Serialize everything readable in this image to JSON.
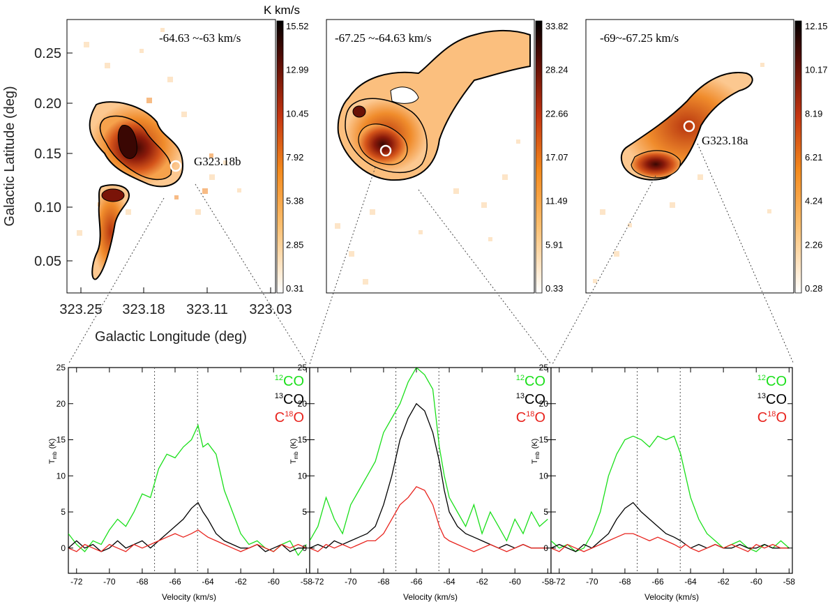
{
  "colors": {
    "green": "#1adf1a",
    "black": "#000000",
    "red": "#e8241e",
    "vline": "#555555"
  },
  "maps": {
    "unit_label": "K km/s",
    "xlabel": "Galactic Longitude (deg)",
    "ylabel": "Galactic Latitude (deg)",
    "x_ticks": [
      "323.25",
      "323.18",
      "323.11",
      "323.03"
    ],
    "y_ticks": [
      "0.25",
      "0.20",
      "0.15",
      "0.10",
      "0.05"
    ],
    "panels": [
      {
        "title": "-64.63 ~-63 km/s",
        "source_label": "G323.18b",
        "colorbar": [
          "15.52",
          "12.99",
          "10.45",
          "7.92",
          "5.38",
          "2.85",
          "0.31"
        ]
      },
      {
        "title": "-67.25 ~-64.63 km/s",
        "source_label": "",
        "colorbar": [
          "33.82",
          "28.24",
          "22.66",
          "17.07",
          "11.49",
          "5.91",
          "0.33"
        ]
      },
      {
        "title": "-69~-67.25 km/s",
        "source_label": "G323.18a",
        "colorbar": [
          "12.15",
          "10.17",
          "8.19",
          "6.21",
          "4.24",
          "2.26",
          "0.28"
        ]
      }
    ]
  },
  "chart_data": {
    "type": "line",
    "xlabel": "Velocity (km/s)",
    "ylabel_main": "T",
    "ylabel_sub": "mb",
    "ylabel_unit": "(K)",
    "xlim": [
      -72.5,
      -57.8
    ],
    "ylim": [
      -3.5,
      25
    ],
    "x_ticks": [
      "-72",
      "-70",
      "-68",
      "-66",
      "-64",
      "-62",
      "-60",
      "-58"
    ],
    "y_ticks": [
      "0",
      "5",
      "10",
      "15",
      "20",
      "25"
    ],
    "legend": {
      "co12": {
        "sup": "12",
        "base": "CO"
      },
      "co13": {
        "sup": "13",
        "base": "CO"
      },
      "c18o": {
        "base": "C",
        "sup": "18",
        "tail": "O"
      }
    },
    "panels": [
      {
        "vlines": [
          -67.25,
          -64.63
        ],
        "series": [
          {
            "name": "12CO",
            "x": [
              -72.5,
              -72,
              -71.5,
              -71,
              -70.5,
              -70,
              -69.5,
              -69,
              -68.5,
              -68,
              -67.5,
              -67,
              -66.5,
              -66,
              -65.5,
              -65,
              -64.6,
              -64.3,
              -64,
              -63.5,
              -63,
              -62.5,
              -62,
              -61.5,
              -61,
              -60.5,
              -60,
              -59.5,
              -59,
              -58.5,
              -58
            ],
            "y": [
              2,
              0.5,
              -0.5,
              1,
              0.5,
              2.5,
              4,
              3,
              5,
              7.5,
              7,
              11,
              13,
              12.5,
              14,
              15,
              17,
              14,
              14.5,
              13,
              8,
              5,
              2,
              0.5,
              1,
              0,
              -0.5,
              0.5,
              1,
              -1,
              0.5
            ]
          },
          {
            "name": "13CO",
            "x": [
              -72.5,
              -72,
              -71.5,
              -71,
              -70.5,
              -70,
              -69.5,
              -69,
              -68.5,
              -68,
              -67.5,
              -67,
              -66.5,
              -66,
              -65.5,
              -65,
              -64.6,
              -64.3,
              -64,
              -63.5,
              -63,
              -62.5,
              -62,
              -61.5,
              -61,
              -60.5,
              -60,
              -59.5,
              -59,
              -58.5,
              -58
            ],
            "y": [
              0,
              1,
              0,
              0.5,
              -0.5,
              0,
              1,
              0,
              0.5,
              1,
              0,
              1,
              2,
              3,
              4,
              5.5,
              6.3,
              5,
              4,
              2,
              1,
              0.5,
              0,
              0,
              0.5,
              -0.5,
              0,
              0.5,
              -0.5,
              0,
              0
            ]
          },
          {
            "name": "C18O",
            "x": [
              -72.5,
              -72,
              -71.5,
              -71,
              -70.5,
              -70,
              -69.5,
              -69,
              -68.5,
              -68,
              -67.5,
              -67,
              -66.5,
              -66,
              -65.5,
              -65,
              -64.6,
              -64.3,
              -64,
              -63.5,
              -63,
              -62.5,
              -62,
              -61.5,
              -61,
              -60.5,
              -60,
              -59.5,
              -59,
              -58.5,
              -58
            ],
            "y": [
              0,
              -0.5,
              0.5,
              0,
              -0.5,
              0.5,
              0,
              -0.5,
              0.5,
              0,
              0.5,
              1,
              1.5,
              2,
              1.5,
              2,
              2.5,
              2,
              1.5,
              1,
              0.5,
              0,
              -0.5,
              0,
              0.5,
              0,
              -0.5,
              0.5,
              0,
              0.5,
              0
            ]
          }
        ]
      },
      {
        "vlines": [
          -67.25,
          -64.63
        ],
        "series": [
          {
            "name": "12CO",
            "x": [
              -72.5,
              -72,
              -71.5,
              -71,
              -70.5,
              -70,
              -69.5,
              -69,
              -68.5,
              -68,
              -67.5,
              -67,
              -66.5,
              -66,
              -65.5,
              -65,
              -64.6,
              -64.3,
              -64,
              -63.5,
              -63,
              -62.5,
              -62,
              -61.5,
              -61,
              -60.5,
              -60,
              -59.5,
              -59,
              -58.5,
              -58
            ],
            "y": [
              1,
              3,
              7,
              4,
              2,
              6,
              8,
              10,
              12,
              16,
              18,
              20,
              23,
              25,
              24,
              22,
              14,
              10,
              7,
              5,
              3,
              6,
              2,
              5,
              3,
              1,
              4,
              2,
              5,
              3,
              4
            ]
          },
          {
            "name": "13CO",
            "x": [
              -72.5,
              -72,
              -71.5,
              -71,
              -70.5,
              -70,
              -69.5,
              -69,
              -68.5,
              -68,
              -67.5,
              -67,
              -66.5,
              -66,
              -65.5,
              -65,
              -64.6,
              -64.3,
              -64,
              -63.5,
              -63,
              -62.5,
              -62,
              -61.5,
              -61,
              -60.5,
              -60,
              -59.5,
              -59,
              -58.5,
              -58
            ],
            "y": [
              0,
              0.5,
              0,
              1,
              0.5,
              1,
              1.5,
              2,
              3,
              6,
              10,
              15,
              18,
              20,
              19,
              16,
              12,
              8,
              5,
              3,
              2,
              1.5,
              1,
              0.5,
              0,
              0.5,
              0,
              0.5,
              0,
              0,
              0
            ]
          },
          {
            "name": "C18O",
            "x": [
              -72.5,
              -72,
              -71.5,
              -71,
              -70.5,
              -70,
              -69.5,
              -69,
              -68.5,
              -68,
              -67.5,
              -67,
              -66.5,
              -66,
              -65.5,
              -65,
              -64.6,
              -64.3,
              -64,
              -63.5,
              -63,
              -62.5,
              -62,
              -61.5,
              -61,
              -60.5,
              -60,
              -59.5,
              -59,
              -58.5,
              -58
            ],
            "y": [
              0,
              -0.5,
              0.5,
              0,
              0.5,
              0,
              0.5,
              1,
              1,
              2,
              4,
              6,
              7,
              8.5,
              8,
              6,
              3,
              1.5,
              1,
              0.5,
              0,
              -0.5,
              0,
              0.5,
              0,
              -0.5,
              0,
              0.5,
              0,
              0,
              0
            ]
          }
        ]
      },
      {
        "vlines": [
          -67.25,
          -64.63
        ],
        "series": [
          {
            "name": "12CO",
            "x": [
              -72.5,
              -72,
              -71.5,
              -71,
              -70.5,
              -70,
              -69.5,
              -69,
              -68.5,
              -68,
              -67.5,
              -67,
              -66.5,
              -66,
              -65.5,
              -65,
              -64.6,
              -64.3,
              -64,
              -63.5,
              -63,
              -62.5,
              -62,
              -61.5,
              -61,
              -60.5,
              -60,
              -59.5,
              -59,
              -58.5,
              -58
            ],
            "y": [
              1,
              0,
              0.5,
              -0.5,
              0,
              2,
              5,
              10,
              13,
              15,
              15.5,
              15,
              14,
              15.5,
              15,
              15.5,
              13,
              10,
              7,
              4,
              2,
              1,
              0,
              0.5,
              1,
              0,
              -0.5,
              0.5,
              0,
              1,
              0
            ]
          },
          {
            "name": "13CO",
            "x": [
              -72.5,
              -72,
              -71.5,
              -71,
              -70.5,
              -70,
              -69.5,
              -69,
              -68.5,
              -68,
              -67.5,
              -67,
              -66.5,
              -66,
              -65.5,
              -65,
              -64.6,
              -64.3,
              -64,
              -63.5,
              -63,
              -62.5,
              -62,
              -61.5,
              -61,
              -60.5,
              -60,
              -59.5,
              -59,
              -58.5,
              -58
            ],
            "y": [
              0,
              0.5,
              0,
              -0.5,
              0.5,
              0,
              1,
              2,
              4,
              5.5,
              6.3,
              5,
              4,
              3,
              2,
              1.5,
              1,
              0.5,
              0,
              0.5,
              0,
              0.5,
              0,
              0,
              0.5,
              0,
              0,
              0.5,
              0,
              0,
              0
            ]
          },
          {
            "name": "C18O",
            "x": [
              -72.5,
              -72,
              -71.5,
              -71,
              -70.5,
              -70,
              -69.5,
              -69,
              -68.5,
              -68,
              -67.5,
              -67,
              -66.5,
              -66,
              -65.5,
              -65,
              -64.6,
              -64.3,
              -64,
              -63.5,
              -63,
              -62.5,
              -62,
              -61.5,
              -61,
              -60.5,
              -60,
              -59.5,
              -59,
              -58.5,
              -58
            ],
            "y": [
              0,
              -0.5,
              0.5,
              0,
              -0.5,
              0,
              0.5,
              1,
              1.5,
              2,
              2,
              1.5,
              1,
              1.5,
              1,
              0.5,
              0,
              0.5,
              0,
              -0.5,
              0,
              0.5,
              0,
              0.5,
              0,
              -0.5,
              0.5,
              0,
              0.5,
              0,
              0
            ]
          }
        ]
      }
    ]
  }
}
